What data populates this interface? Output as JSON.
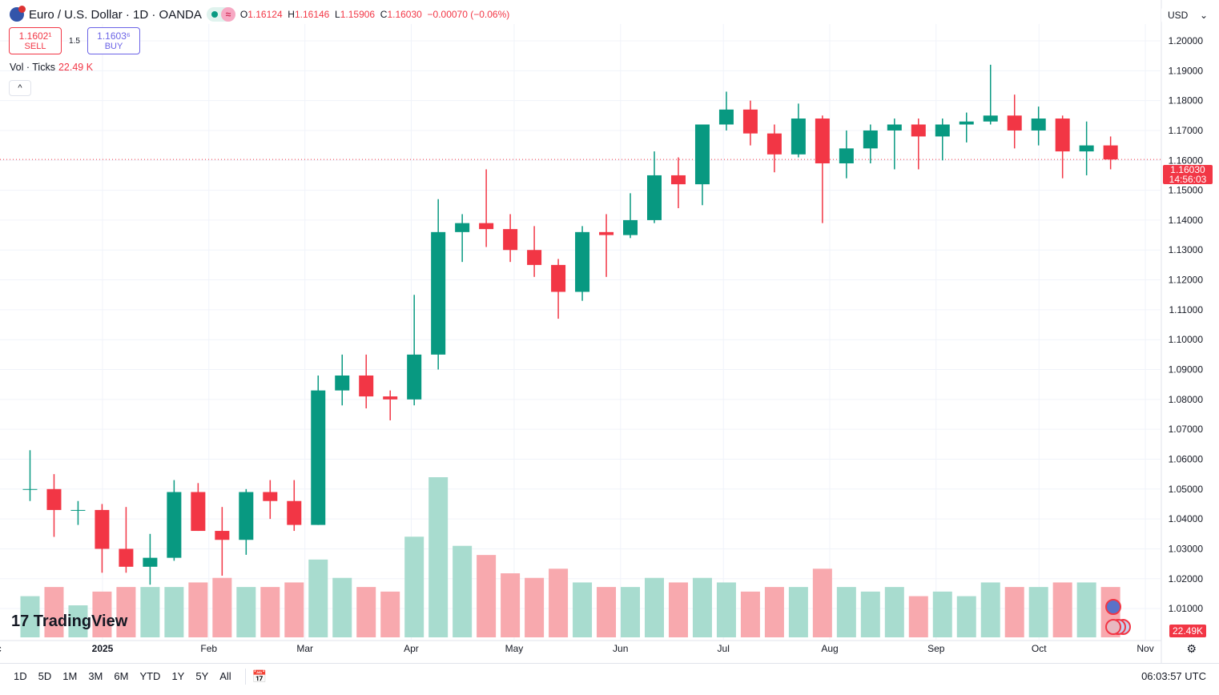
{
  "header": {
    "symbol": "Euro / U.S. Dollar · 1D · OANDA",
    "o_label": "O",
    "o": "1.16124",
    "h_label": "H",
    "h": "1.16146",
    "l_label": "L",
    "l": "1.15906",
    "c_label": "C",
    "c": "1.16030",
    "change": "−0.00070 (−0.06%)",
    "status_icon": "market-open-dot",
    "replay_icon": "approx-icon"
  },
  "trade": {
    "sell_price": "1.1602¹",
    "sell_label": "SELL",
    "spread": "1.5",
    "buy_price": "1.1603⁶",
    "buy_label": "BUY"
  },
  "volume_legend": {
    "label": "Vol · Ticks",
    "value": "22.49 K"
  },
  "currency": {
    "label": "USD",
    "chevron": "⌄"
  },
  "price_label": {
    "price": "1.16030",
    "countdown": "14:56:03"
  },
  "volume_label": "22.49K",
  "bottom": {
    "ranges": [
      "1D",
      "5D",
      "1M",
      "3M",
      "6M",
      "YTD",
      "1Y",
      "5Y",
      "All"
    ],
    "time": "06:03:57 UTC"
  },
  "colors": {
    "up": "#089981",
    "down": "#f23645",
    "vol_up": "#a8dccf",
    "vol_down": "#f8a9ae"
  },
  "chart_data": {
    "type": "candlestick",
    "interval": "weekly approximation of daily candles",
    "y_ticks": [
      "1.20000",
      "1.19000",
      "1.18000",
      "1.17000",
      "1.16000",
      "1.15000",
      "1.14000",
      "1.13000",
      "1.12000",
      "1.11000",
      "1.10000",
      "1.09000",
      "1.08000",
      "1.07000",
      "1.06000",
      "1.05000",
      "1.04000",
      "1.03000",
      "1.02000",
      "1.01000"
    ],
    "ylim": [
      1.0065,
      1.2125
    ],
    "x_ticks": [
      {
        "label": "ec",
        "date": "2024-12-01"
      },
      {
        "label": "2025",
        "date": "2025-01-01"
      },
      {
        "label": "Feb",
        "date": "2025-02-01"
      },
      {
        "label": "Mar",
        "date": "2025-03-01"
      },
      {
        "label": "Apr",
        "date": "2025-04-01"
      },
      {
        "label": "May",
        "date": "2025-05-01"
      },
      {
        "label": "Jun",
        "date": "2025-06-01"
      },
      {
        "label": "Jul",
        "date": "2025-07-01"
      },
      {
        "label": "Aug",
        "date": "2025-08-01"
      },
      {
        "label": "Sep",
        "date": "2025-09-01"
      },
      {
        "label": "Oct",
        "date": "2025-10-01"
      },
      {
        "label": "Nov",
        "date": "2025-11-01"
      }
    ],
    "last_price": 1.1603,
    "candles": [
      {
        "date": "2024-12-09",
        "o": 1.05,
        "h": 1.063,
        "l": 1.046,
        "c": 1.05,
        "v": 45
      },
      {
        "date": "2024-12-16",
        "o": 1.05,
        "h": 1.055,
        "l": 1.034,
        "c": 1.043,
        "v": 55
      },
      {
        "date": "2024-12-23",
        "o": 1.043,
        "h": 1.046,
        "l": 1.038,
        "c": 1.043,
        "v": 35
      },
      {
        "date": "2024-12-30",
        "o": 1.043,
        "h": 1.045,
        "l": 1.022,
        "c": 1.03,
        "v": 50
      },
      {
        "date": "2025-01-06",
        "o": 1.03,
        "h": 1.044,
        "l": 1.022,
        "c": 1.024,
        "v": 55
      },
      {
        "date": "2025-01-13",
        "o": 1.024,
        "h": 1.035,
        "l": 1.018,
        "c": 1.027,
        "v": 55
      },
      {
        "date": "2025-01-20",
        "o": 1.027,
        "h": 1.053,
        "l": 1.026,
        "c": 1.049,
        "v": 55
      },
      {
        "date": "2025-01-27",
        "o": 1.049,
        "h": 1.052,
        "l": 1.036,
        "c": 1.036,
        "v": 60
      },
      {
        "date": "2025-02-03",
        "o": 1.036,
        "h": 1.044,
        "l": 1.021,
        "c": 1.033,
        "v": 65
      },
      {
        "date": "2025-02-10",
        "o": 1.033,
        "h": 1.05,
        "l": 1.028,
        "c": 1.049,
        "v": 55
      },
      {
        "date": "2025-02-17",
        "o": 1.049,
        "h": 1.053,
        "l": 1.04,
        "c": 1.046,
        "v": 55
      },
      {
        "date": "2025-02-24",
        "o": 1.046,
        "h": 1.053,
        "l": 1.036,
        "c": 1.038,
        "v": 60
      },
      {
        "date": "2025-03-03",
        "o": 1.038,
        "h": 1.088,
        "l": 1.038,
        "c": 1.083,
        "v": 85
      },
      {
        "date": "2025-03-10",
        "o": 1.083,
        "h": 1.095,
        "l": 1.078,
        "c": 1.088,
        "v": 65
      },
      {
        "date": "2025-03-17",
        "o": 1.088,
        "h": 1.095,
        "l": 1.077,
        "c": 1.081,
        "v": 55
      },
      {
        "date": "2025-03-24",
        "o": 1.081,
        "h": 1.083,
        "l": 1.073,
        "c": 1.08,
        "v": 50
      },
      {
        "date": "2025-03-31",
        "o": 1.08,
        "h": 1.115,
        "l": 1.078,
        "c": 1.095,
        "v": 110
      },
      {
        "date": "2025-04-07",
        "o": 1.095,
        "h": 1.147,
        "l": 1.09,
        "c": 1.136,
        "v": 175
      },
      {
        "date": "2025-04-14",
        "o": 1.136,
        "h": 1.142,
        "l": 1.126,
        "c": 1.139,
        "v": 100
      },
      {
        "date": "2025-04-21",
        "o": 1.139,
        "h": 1.157,
        "l": 1.131,
        "c": 1.137,
        "v": 90
      },
      {
        "date": "2025-04-28",
        "o": 1.137,
        "h": 1.142,
        "l": 1.126,
        "c": 1.13,
        "v": 70
      },
      {
        "date": "2025-05-05",
        "o": 1.13,
        "h": 1.138,
        "l": 1.121,
        "c": 1.125,
        "v": 65
      },
      {
        "date": "2025-05-12",
        "o": 1.125,
        "h": 1.127,
        "l": 1.107,
        "c": 1.116,
        "v": 75
      },
      {
        "date": "2025-05-19",
        "o": 1.116,
        "h": 1.138,
        "l": 1.113,
        "c": 1.136,
        "v": 60
      },
      {
        "date": "2025-05-26",
        "o": 1.136,
        "h": 1.142,
        "l": 1.121,
        "c": 1.135,
        "v": 55
      },
      {
        "date": "2025-06-02",
        "o": 1.135,
        "h": 1.149,
        "l": 1.134,
        "c": 1.14,
        "v": 55
      },
      {
        "date": "2025-06-09",
        "o": 1.14,
        "h": 1.163,
        "l": 1.139,
        "c": 1.155,
        "v": 65
      },
      {
        "date": "2025-06-16",
        "o": 1.155,
        "h": 1.161,
        "l": 1.144,
        "c": 1.152,
        "v": 60
      },
      {
        "date": "2025-06-23",
        "o": 1.152,
        "h": 1.172,
        "l": 1.145,
        "c": 1.172,
        "v": 65
      },
      {
        "date": "2025-06-30",
        "o": 1.172,
        "h": 1.183,
        "l": 1.17,
        "c": 1.177,
        "v": 60
      },
      {
        "date": "2025-07-07",
        "o": 1.177,
        "h": 1.18,
        "l": 1.165,
        "c": 1.169,
        "v": 50
      },
      {
        "date": "2025-07-14",
        "o": 1.169,
        "h": 1.172,
        "l": 1.156,
        "c": 1.162,
        "v": 55
      },
      {
        "date": "2025-07-21",
        "o": 1.162,
        "h": 1.179,
        "l": 1.161,
        "c": 1.174,
        "v": 55
      },
      {
        "date": "2025-07-28",
        "o": 1.174,
        "h": 1.175,
        "l": 1.139,
        "c": 1.159,
        "v": 75
      },
      {
        "date": "2025-08-04",
        "o": 1.159,
        "h": 1.17,
        "l": 1.154,
        "c": 1.164,
        "v": 55
      },
      {
        "date": "2025-08-11",
        "o": 1.164,
        "h": 1.172,
        "l": 1.159,
        "c": 1.17,
        "v": 50
      },
      {
        "date": "2025-08-18",
        "o": 1.17,
        "h": 1.174,
        "l": 1.157,
        "c": 1.172,
        "v": 55
      },
      {
        "date": "2025-08-25",
        "o": 1.172,
        "h": 1.174,
        "l": 1.157,
        "c": 1.168,
        "v": 45
      },
      {
        "date": "2025-09-01",
        "o": 1.168,
        "h": 1.174,
        "l": 1.16,
        "c": 1.172,
        "v": 50
      },
      {
        "date": "2025-09-08",
        "o": 1.172,
        "h": 1.176,
        "l": 1.166,
        "c": 1.173,
        "v": 45
      },
      {
        "date": "2025-09-15",
        "o": 1.173,
        "h": 1.192,
        "l": 1.172,
        "c": 1.175,
        "v": 60
      },
      {
        "date": "2025-09-22",
        "o": 1.175,
        "h": 1.182,
        "l": 1.164,
        "c": 1.17,
        "v": 55
      },
      {
        "date": "2025-09-29",
        "o": 1.17,
        "h": 1.178,
        "l": 1.165,
        "c": 1.174,
        "v": 55
      },
      {
        "date": "2025-10-06",
        "o": 1.174,
        "h": 1.175,
        "l": 1.154,
        "c": 1.163,
        "v": 60
      },
      {
        "date": "2025-10-13",
        "o": 1.163,
        "h": 1.173,
        "l": 1.155,
        "c": 1.165,
        "v": 60
      },
      {
        "date": "2025-10-20",
        "o": 1.165,
        "h": 1.168,
        "l": 1.157,
        "c": 1.1603,
        "v": 55
      }
    ]
  }
}
